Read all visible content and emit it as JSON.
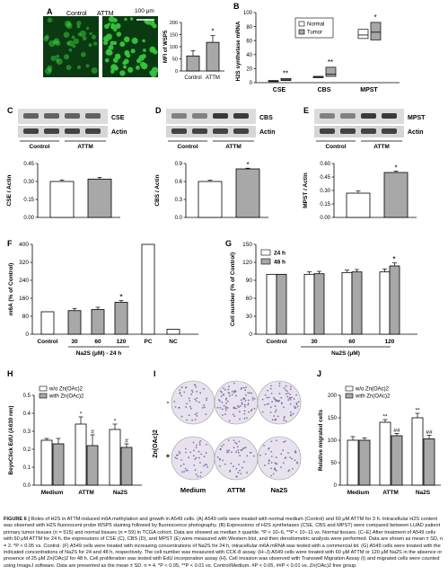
{
  "panels": {
    "A": {
      "label": "A",
      "img_labels": [
        "Control",
        "ATTM"
      ],
      "scale_bar": "100 μm",
      "colors": {
        "fluor_dark": "#0b3a12",
        "fluor_bright": "#37c43d"
      },
      "chart": {
        "type": "bar",
        "ylabel": "MFI of WSP5",
        "categories": [
          "Control",
          "ATTM"
        ],
        "values": [
          62,
          118
        ],
        "errors": [
          22,
          28
        ],
        "ylim": [
          0,
          200
        ],
        "yticks": [
          "0",
          "50",
          "100",
          "150",
          "200"
        ],
        "annotations": [
          "",
          "*"
        ]
      }
    },
    "B": {
      "label": "B",
      "ylabel": "H2S synthetase mRNA",
      "legend": [
        "Normal",
        "Tumor"
      ],
      "categories": [
        "CSE",
        "CBS",
        "MPST"
      ],
      "yticks": [
        "0",
        "20",
        "40",
        "60",
        "80",
        "100"
      ],
      "ylim": [
        0,
        100
      ],
      "annotations": [
        "**",
        "**",
        "*"
      ],
      "boxes": [
        {
          "group": "CSE",
          "series": "Normal",
          "q1": 2,
          "median": 2.5,
          "q3": 3
        },
        {
          "group": "CSE",
          "series": "Tumor",
          "q1": 3,
          "median": 4,
          "q3": 6
        },
        {
          "group": "CBS",
          "series": "Normal",
          "q1": 7,
          "median": 8,
          "q3": 9
        },
        {
          "group": "CBS",
          "series": "Tumor",
          "q1": 9,
          "median": 12,
          "q3": 22
        },
        {
          "group": "MPST",
          "series": "Normal",
          "q1": 63,
          "median": 68,
          "q3": 76
        },
        {
          "group": "MPST",
          "series": "Tumor",
          "q1": 61,
          "median": 72,
          "q3": 86
        }
      ]
    },
    "C": {
      "label": "C",
      "blot_labels": [
        "CSE",
        "Actin"
      ],
      "groups": [
        "Control",
        "ATTM"
      ],
      "chart": {
        "type": "bar",
        "ylabel": "CSE / Actin",
        "categories": [
          "Control",
          "ATTM"
        ],
        "values": [
          0.3,
          0.32
        ],
        "errors": [
          0.013,
          0.015
        ],
        "ylim": [
          0,
          0.45
        ],
        "yticks": [
          "0.00",
          "0.15",
          "0.30",
          "0.45"
        ],
        "annotations": [
          "",
          ""
        ]
      }
    },
    "D": {
      "label": "D",
      "blot_labels": [
        "CBS",
        "Actin"
      ],
      "groups": [
        "Control",
        "ATTM"
      ],
      "chart": {
        "type": "bar",
        "ylabel": "CBS / Actin",
        "categories": [
          "Control",
          "ATTM"
        ],
        "values": [
          0.6,
          0.81
        ],
        "errors": [
          0.02,
          0.012
        ],
        "ylim": [
          0,
          0.9
        ],
        "yticks": [
          "0.0",
          "0.3",
          "0.6",
          "0.9"
        ],
        "annotations": [
          "",
          "*"
        ]
      }
    },
    "E": {
      "label": "E",
      "blot_labels": [
        "MPST",
        "Actin"
      ],
      "groups": [
        "Control",
        "ATTM"
      ],
      "chart": {
        "type": "bar",
        "ylabel": "MPST / Actin",
        "categories": [
          "Control",
          "ATTM"
        ],
        "values": [
          0.27,
          0.5
        ],
        "errors": [
          0.025,
          0.015
        ],
        "ylim": [
          0,
          0.6
        ],
        "yticks": [
          "0.00",
          "0.15",
          "0.30",
          "0.45",
          "0.60"
        ],
        "annotations": [
          "",
          "*"
        ]
      }
    },
    "F": {
      "label": "F",
      "chart": {
        "type": "bar",
        "ylabel": "m6A (% of Control)",
        "xlabel": "Na2S (μM) - 24 h",
        "categories": [
          "Control",
          "30",
          "60",
          "120",
          "PC",
          "NC"
        ],
        "values": [
          100,
          105,
          110,
          142,
          400,
          22
        ],
        "errors": [
          0,
          10,
          10,
          8,
          0,
          0
        ],
        "colors": [
          "#ffffff",
          "#a8a8a8",
          "#a8a8a8",
          "#a8a8a8",
          "#ffffff",
          "#ffffff"
        ],
        "ylim": [
          0,
          400
        ],
        "yticks": [
          "0",
          "80",
          "160",
          "240",
          "320",
          "400"
        ],
        "annotations": [
          "",
          "",
          "",
          "*",
          "",
          ""
        ]
      }
    },
    "G": {
      "label": "G",
      "chart": {
        "type": "bar",
        "ylabel": "Cell number (% of Control)",
        "xlabel": "Na2S (μM)",
        "categories": [
          "Control",
          "30",
          "60",
          "120"
        ],
        "legend": [
          "24 h",
          "48 h"
        ],
        "series": [
          {
            "name": "24 h",
            "values": [
              100,
              100,
              103,
              104
            ],
            "errors": [
              0,
              4,
              4,
              5
            ],
            "color": "#ffffff"
          },
          {
            "name": "48 h",
            "values": [
              100,
              101,
              104,
              114
            ],
            "errors": [
              0,
              4,
              4,
              5
            ],
            "color": "#a8a8a8"
          }
        ],
        "ylim": [
          0,
          150
        ],
        "yticks": [
          "0",
          "30",
          "60",
          "90",
          "120",
          "150"
        ],
        "annotations": [
          "",
          "",
          "",
          "*"
        ]
      }
    },
    "H": {
      "label": "H",
      "chart": {
        "type": "bar",
        "ylabel": "BeyoClick EdU (A630 nm)",
        "categories": [
          "Medium",
          "ATTM",
          "Na2S"
        ],
        "legend": [
          "w/o Zn(OAc)2",
          "with Zn(OAc)2"
        ],
        "series": [
          {
            "name": "w/o Zn(OAc)2",
            "values": [
              0.25,
              0.34,
              0.31
            ],
            "errors": [
              0.01,
              0.04,
              0.03
            ],
            "color": "#ffffff"
          },
          {
            "name": "with Zn(OAc)2",
            "values": [
              0.23,
              0.22,
              0.21
            ],
            "errors": [
              0.03,
              0.06,
              0.02
            ],
            "color": "#a8a8a8"
          }
        ],
        "ylim": [
          0,
          0.5
        ],
        "yticks": [
          "0.0",
          "0.1",
          "0.2",
          "0.3",
          "0.4",
          "0.5"
        ],
        "annotations": [
          [
            "",
            ""
          ],
          [
            "*",
            "#"
          ],
          [
            "*",
            "#"
          ]
        ]
      }
    },
    "I": {
      "label": "I",
      "ylabel": "Zn(OAc)2",
      "row_labels": [
        "-",
        "+"
      ],
      "col_labels": [
        "Medium",
        "ATTM",
        "Na2S"
      ],
      "colors": {
        "well_bg": "#e7e2ee",
        "cell": "#6b5a92"
      }
    },
    "J": {
      "label": "J",
      "chart": {
        "type": "bar",
        "ylabel": "Relative migrated cells",
        "categories": [
          "Medium",
          "ATTM",
          "Na2S"
        ],
        "legend": [
          "w/o Zn(OAc)2",
          "with Zn(OAc)2"
        ],
        "series": [
          {
            "name": "w/o Zn(OAc)2",
            "values": [
              100,
              140,
              150
            ],
            "errors": [
              8,
              6,
              10
            ],
            "color": "#ffffff"
          },
          {
            "name": "with Zn(OAc)2",
            "values": [
              100,
              110,
              103
            ],
            "errors": [
              5,
              5,
              8
            ],
            "color": "#a8a8a8"
          }
        ],
        "ylim": [
          0,
          200
        ],
        "yticks": [
          "0",
          "50",
          "100",
          "150",
          "200"
        ],
        "annotations": [
          [
            "",
            ""
          ],
          [
            "**",
            "##"
          ],
          [
            "**",
            "##"
          ]
        ]
      }
    }
  },
  "caption": {
    "heading": "FIGURE 6 |",
    "text": "Roles of H2S in ATTM-induced m6A methylation and growth in A549 cells. (A) A549 cells were treated with normal medium (Control) and 60 μM ATTM for 3 h. Intracellular H2S content was observed with H2S fluorescent probe WSP5 staining followed by fluorescence photography. (B) Expressions of H2S synthetases (CSE, CBS and MPST) were compared between LUAD patient primary tumor tissues (n = 515) and normal tissues (n = 59) in TCGA cohort. Data are showed as median ± quartile. *P < 10−6, **P < 10−11 vs. Normal tissues. (C–E) After treatment of A549 cells with 60 μM ATTM for 24 h, the expressions of CSE (C), CBS (D), and MPST (E) were measured with Western blot, and then densitometric analysis were performed. Data are shown as mean ± SD, n = 2. *P < 0.05 vs. Control. (F) A549 cells were treated with increasing concentrations of Na2S for 24 h, intracellular m6A mRNA was tested with a commercial kit. (G) A549 cells were treated with the indicated concentrations of Na2S for 24 and 48 h, respectively. The cell number was measured with CCK-8 assay. (H–J) A549 cells were treated with 60 μM ATTM or 120 μM Na2S in the absence or presence of 25 μM Zn(OAc)2 for 48 h. Cell proliferation was tested with EdU incorporation assay (H). Cell invasion was observed with Transwell Migration Assay (I) and migrated cells were counted using ImageJ software. Data are presented as the mean ± SD. n = 4. *P < 0.05, **P < 0.01 vs. Control/Medium. #P < 0.05, ##P < 0.01 vs. Zn(OAc)2 free group."
  }
}
